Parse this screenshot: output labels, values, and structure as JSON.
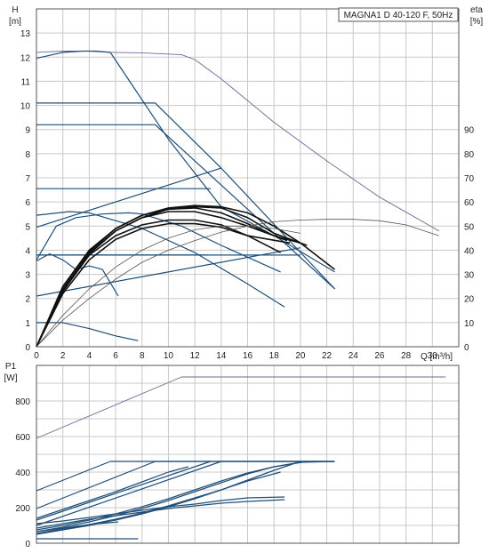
{
  "title_box": "MAGNA1 D 40-120 F, 50Hz",
  "colors": {
    "curve": "#1f4e79",
    "control": "#2a5a88",
    "efficiency": "#3c3c6e",
    "grid": "#c8c8c8"
  },
  "chart_data": [
    {
      "type": "line",
      "panel": "head",
      "ylabel_left": "H\n[m]",
      "ylabel_right": "eta\n[%]",
      "xlabel": "Q [m³/h]",
      "xlim": [
        0,
        32
      ],
      "ylim": [
        0,
        14
      ],
      "ylim_right": [
        0,
        140
      ],
      "x_ticks": [
        0,
        2,
        4,
        6,
        8,
        10,
        12,
        14,
        16,
        18,
        20,
        22,
        24,
        26,
        28,
        30
      ],
      "y_ticks": [
        0,
        1,
        2,
        3,
        4,
        5,
        6,
        7,
        8,
        9,
        10,
        11,
        12,
        13
      ],
      "y_ticks_right": [
        0,
        10,
        20,
        30,
        40,
        50,
        60,
        70,
        80,
        90
      ],
      "series": [
        {
          "x": [
            0,
            2,
            4,
            5.6,
            8,
            11,
            12,
            14,
            18,
            22,
            26,
            30.5
          ],
          "y": [
            12.2,
            12.25,
            12.25,
            12.2,
            12.18,
            12.1,
            11.9,
            11.1,
            9.3,
            7.7,
            6.2,
            4.8
          ]
        },
        {
          "x": [
            0,
            2,
            3.5,
            4.5,
            5.6
          ],
          "y": [
            11.95,
            12.2,
            12.25,
            12.25,
            12.2
          ]
        },
        {
          "x": [
            5.6,
            10,
            14,
            18,
            22.6
          ],
          "y": [
            12.2,
            8.6,
            5.8,
            4.6,
            3.1
          ]
        },
        {
          "x": [
            0,
            9,
            22.6
          ],
          "y": [
            9.2,
            9.2,
            2.4
          ]
        },
        {
          "x": [
            0,
            9,
            14,
            22.6
          ],
          "y": [
            10.1,
            10.1,
            7.4,
            2.4
          ]
        },
        {
          "x": [
            0,
            14
          ],
          "y": [
            4.95,
            7.4
          ]
        },
        {
          "x": [
            0,
            13.2
          ],
          "y": [
            6.55,
            6.55
          ]
        },
        {
          "x": [
            0,
            13
          ],
          "y": [
            3.8,
            3.8
          ]
        },
        {
          "x": [
            0,
            20
          ],
          "y": [
            3.8,
            3.8
          ]
        },
        {
          "x": [
            0,
            20
          ],
          "y": [
            2.1,
            4.1
          ]
        },
        {
          "x": [
            0,
            2.5,
            4,
            8,
            12,
            16,
            18.8
          ],
          "y": [
            5.45,
            5.6,
            5.55,
            4.9,
            3.9,
            2.6,
            1.65
          ]
        },
        {
          "x": [
            0,
            1.5,
            3,
            5,
            7,
            8,
            11,
            14,
            18.5
          ],
          "y": [
            3.6,
            5.0,
            5.35,
            5.5,
            5.55,
            5.5,
            5.0,
            4.2,
            3.1
          ]
        },
        {
          "x": [
            0,
            1,
            2,
            3,
            4,
            5,
            6.2
          ],
          "y": [
            3.55,
            3.85,
            3.6,
            3.2,
            3.35,
            3.2,
            2.1
          ]
        },
        {
          "x": [
            0,
            2,
            4,
            6,
            7.7
          ],
          "y": [
            1.0,
            1.0,
            0.75,
            0.45,
            0.25
          ]
        },
        {
          "x": [
            0,
            2,
            4,
            6,
            8,
            10,
            12,
            14,
            16,
            18,
            20.5
          ],
          "y": [
            0,
            2.4,
            3.9,
            4.8,
            5.35,
            5.7,
            5.8,
            5.75,
            5.35,
            4.7,
            4.2
          ]
        },
        {
          "x": [
            0,
            2,
            4,
            6,
            8,
            10,
            12,
            14,
            16,
            18,
            20,
            22.6
          ],
          "y": [
            0,
            2.5,
            4.0,
            4.9,
            5.45,
            5.75,
            5.85,
            5.8,
            5.55,
            5.0,
            4.3,
            3.2
          ]
        },
        {
          "x": [
            0,
            2,
            4,
            6,
            8,
            10,
            12,
            14,
            16,
            18.5
          ],
          "y": [
            0,
            2.3,
            3.8,
            4.6,
            5.05,
            5.25,
            5.25,
            5.05,
            4.6,
            3.9
          ]
        },
        {
          "x": [
            0,
            2,
            4,
            6,
            8,
            10,
            12,
            14,
            16,
            19.2
          ],
          "y": [
            0,
            2.2,
            3.6,
            4.45,
            4.9,
            5.1,
            5.1,
            4.95,
            4.6,
            4.3
          ]
        },
        {
          "x": [
            0,
            2,
            4,
            6,
            8,
            10,
            12,
            14,
            16,
            18,
            19
          ],
          "y": [
            0,
            2.3,
            3.85,
            4.8,
            5.35,
            5.6,
            5.6,
            5.35,
            5.0,
            4.6,
            4.4
          ]
        },
        {
          "x": [
            0,
            2,
            4,
            6,
            8,
            10,
            12,
            14,
            16,
            18,
            20
          ],
          "y": [
            0,
            2.35,
            3.95,
            4.9,
            5.45,
            5.7,
            5.75,
            5.55,
            5.1,
            4.6,
            4.3
          ]
        }
      ],
      "efficiency": [
        {
          "x": [
            0,
            2,
            4,
            6,
            8,
            10,
            12,
            14,
            16,
            18,
            20,
            22,
            24,
            26,
            28,
            30.5
          ],
          "y": [
            0,
            11,
            20,
            28,
            35,
            40,
            44,
            47.5,
            50,
            51.8,
            52.5,
            52.8,
            52.8,
            52.2,
            50.5,
            46
          ]
        },
        {
          "x": [
            0,
            2,
            4,
            6,
            8,
            10,
            12,
            14,
            16,
            18,
            20
          ],
          "y": [
            0,
            13,
            24,
            33,
            40,
            45,
            48.5,
            50,
            50,
            49,
            47
          ]
        }
      ]
    },
    {
      "type": "line",
      "panel": "power",
      "ylabel_left": "P1\n[W]",
      "xlim": [
        0,
        32
      ],
      "ylim": [
        0,
        1000
      ],
      "y_ticks": [
        0,
        200,
        400,
        600,
        800
      ],
      "series": [
        {
          "x": [
            0,
            11,
            20,
            25,
            31
          ],
          "y": [
            590,
            935,
            935,
            935,
            935
          ]
        },
        {
          "x": [
            0,
            5.6,
            22.6
          ],
          "y": [
            295,
            460,
            460
          ]
        },
        {
          "x": [
            0,
            9,
            22.6
          ],
          "y": [
            195,
            460,
            460
          ]
        },
        {
          "x": [
            0,
            14,
            22.6
          ],
          "y": [
            100,
            460,
            460
          ]
        },
        {
          "x": [
            0,
            13.2
          ],
          "y": [
            130,
            460
          ]
        },
        {
          "x": [
            0,
            2,
            4,
            6,
            8,
            10,
            12,
            14,
            16,
            18,
            20.5
          ],
          "y": [
            65,
            90,
            120,
            155,
            195,
            240,
            290,
            340,
            390,
            430,
            460
          ]
        },
        {
          "x": [
            0,
            2,
            4,
            6,
            8,
            10,
            12,
            14,
            16,
            18,
            20,
            22.6
          ],
          "y": [
            75,
            100,
            130,
            165,
            205,
            250,
            300,
            350,
            395,
            430,
            455,
            460
          ]
        },
        {
          "x": [
            0,
            2,
            4,
            6,
            8,
            10,
            12,
            14,
            16,
            18.5
          ],
          "y": [
            55,
            80,
            105,
            135,
            170,
            210,
            255,
            300,
            350,
            400
          ]
        },
        {
          "x": [
            0,
            2,
            4,
            6,
            8,
            10,
            12,
            14,
            16,
            18.8
          ],
          "y": [
            85,
            110,
            135,
            155,
            175,
            195,
            210,
            225,
            235,
            245
          ]
        },
        {
          "x": [
            0,
            2,
            4,
            6,
            8,
            10,
            12,
            14,
            16,
            18.8
          ],
          "y": [
            110,
            125,
            145,
            165,
            185,
            205,
            220,
            240,
            255,
            260
          ]
        },
        {
          "x": [
            0,
            2,
            4,
            6,
            8,
            10,
            12,
            14,
            16,
            18,
            20
          ],
          "y": [
            50,
            75,
            100,
            130,
            165,
            205,
            250,
            300,
            355,
            410,
            460
          ]
        },
        {
          "x": [
            0,
            2,
            4,
            6,
            8,
            10,
            11.5
          ],
          "y": [
            140,
            190,
            240,
            290,
            345,
            400,
            430
          ]
        },
        {
          "x": [
            0,
            2,
            4,
            6.2
          ],
          "y": [
            65,
            85,
            105,
            120
          ]
        },
        {
          "x": [
            0,
            2,
            4,
            7.7
          ],
          "y": [
            25,
            25,
            25,
            25
          ]
        }
      ]
    }
  ]
}
